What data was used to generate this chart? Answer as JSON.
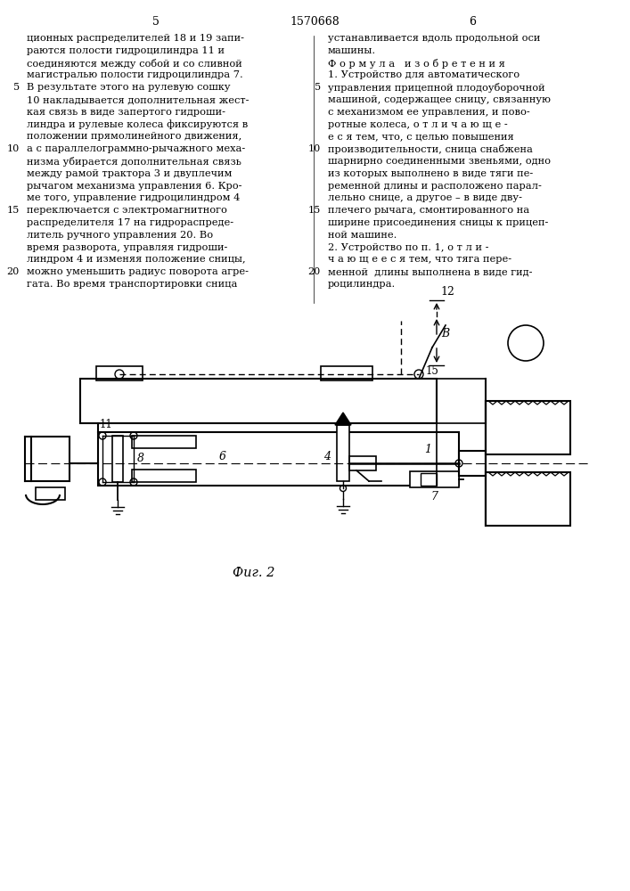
{
  "page_number_left": "5",
  "page_number_center": "1570668",
  "page_number_right": "6",
  "bg_color": "#ffffff",
  "fig_label": "Фиг. 2",
  "left_col_lines": [
    "ционных распределителей 18 и 19 запи-",
    "раются полости гидроцилиндра 11 и",
    "соединяются между собой и со сливной",
    "магистралью полости гидроцилиндра 7.",
    "В результате этого на рулевую сошку",
    "10 накладывается дополнительная жест-",
    "кая связь в виде запертого гидроши-",
    "линдра и рулевые колеса фиксируются в",
    "положении прямолинейного движения,",
    "а с параллелограммно-рычажного меха-",
    "низма убирается дополнительная связь",
    "между рамой трактора 3 и двуплечим",
    "рычагом механизма управления 6. Кро-",
    "ме того, управление гидроцилиндром 4",
    "переключается с электромагнитного",
    "распределителя 17 на гидрораспреде-",
    "литель ручного управления 20. Во",
    "время разворота, управляя гидроши-",
    "линдром 4 и изменяя положение сницы,",
    "можно уменьшить радиус поворота агре-",
    "гата. Во время транспортировки сница"
  ],
  "right_col_lines": [
    "устанавливается вдоль продольной оси",
    "машины.",
    "Ф о р м у л а   и з о б р е т е н и я",
    "1. Устройство для автоматического",
    "управления прицепной плодоуборочной",
    "машиной, содержащее сницу, связанную",
    "с механизмом ее управления, и пово-",
    "ротные колеса, о т л и ч а ю щ е -",
    "е с я тем, что, с целью повышения",
    "производительности, сница снабжена",
    "шарнирно соединенными звеньями, одно",
    "из которых выполнено в виде тяги пе-",
    "ременной длины и расположено парал-",
    "лельно снице, а другое – в виде дву-",
    "плечего рычага, смонтированного на",
    "ширине присоединения сницы к прицеп-",
    "ной машине.",
    "2. Устройство по п. 1, о т л и -",
    "ч а ю щ е е с я тем, что тяга пере-",
    "менной  длины выполнена в виде гид-",
    "роцилиндра."
  ]
}
